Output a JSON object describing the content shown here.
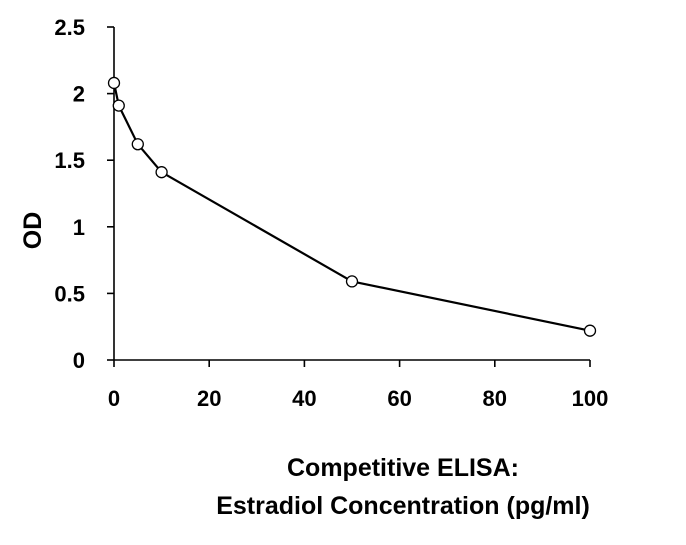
{
  "chart_data": {
    "type": "scatter",
    "title": "",
    "xlabel": [
      "Competitive ELISA:",
      "Estradiol Concentration (pg/ml)"
    ],
    "ylabel": "OD",
    "xlim": [
      0,
      100
    ],
    "ylim": [
      0,
      2.5
    ],
    "x_ticks": [
      0,
      20,
      40,
      60,
      80,
      100
    ],
    "y_ticks": [
      0,
      0.5,
      1,
      1.5,
      2,
      2.5
    ],
    "x_tick_labels": [
      "0",
      "20",
      "40",
      "60",
      "80",
      "100"
    ],
    "y_tick_labels": [
      "0",
      "0.5",
      "1",
      "1.5",
      "2",
      "2.5"
    ],
    "grid": false,
    "legend": "none",
    "line_color": "#000000",
    "marker_fill": "#ffffff",
    "marker_stroke": "#000000",
    "series": [
      {
        "x": [
          0,
          1,
          5,
          10,
          50,
          100
        ],
        "y": [
          2.08,
          1.91,
          1.62,
          1.41,
          0.59,
          0.22
        ]
      }
    ]
  }
}
